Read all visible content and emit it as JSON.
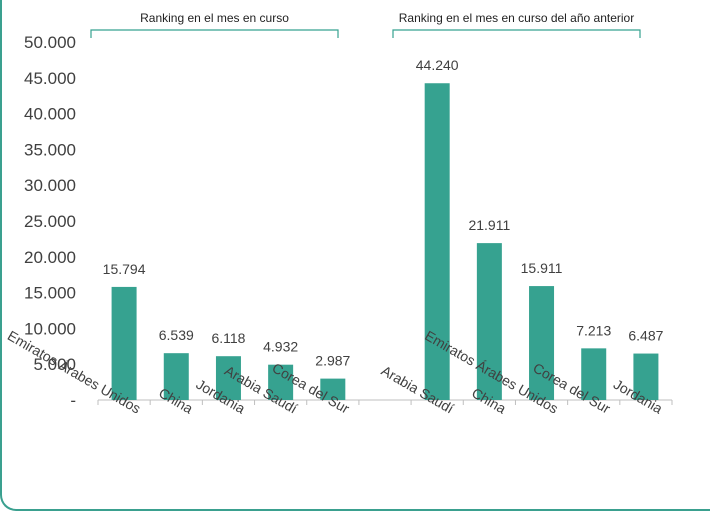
{
  "chart_data": {
    "type": "bar",
    "groups": [
      {
        "label": "Ranking en el mes en curso",
        "categories": [
          "Emiratos Árabes Unidos",
          "China",
          "Jordania",
          "Arabia Saudí",
          "Corea del Sur"
        ],
        "values": [
          15794,
          6539,
          6118,
          4932,
          2987
        ],
        "value_labels": [
          "15.794",
          "6.539",
          "6.118",
          "4.932",
          "2.987"
        ]
      },
      {
        "label": "Ranking en el mes en curso del año anterior",
        "categories": [
          "Arabia Saudí",
          "China",
          "Emiratos Árabes Unidos",
          "Corea del Sur",
          "Jordania"
        ],
        "values": [
          44240,
          21911,
          15911,
          7213,
          6487
        ],
        "value_labels": [
          "44.240",
          "21.911",
          "15.911",
          "7.213",
          "6.487"
        ]
      }
    ],
    "ylim": [
      0,
      50000
    ],
    "yticks": [
      0,
      5000,
      10000,
      15000,
      20000,
      25000,
      30000,
      35000,
      40000,
      45000,
      50000
    ],
    "ytick_labels": [
      "-",
      "5.000",
      "10.000",
      "15.000",
      "20.000",
      "25.000",
      "30.000",
      "35.000",
      "40.000",
      "45.000",
      "50.000"
    ],
    "bar_color": "#36a290",
    "grid": false,
    "legend": "none"
  }
}
